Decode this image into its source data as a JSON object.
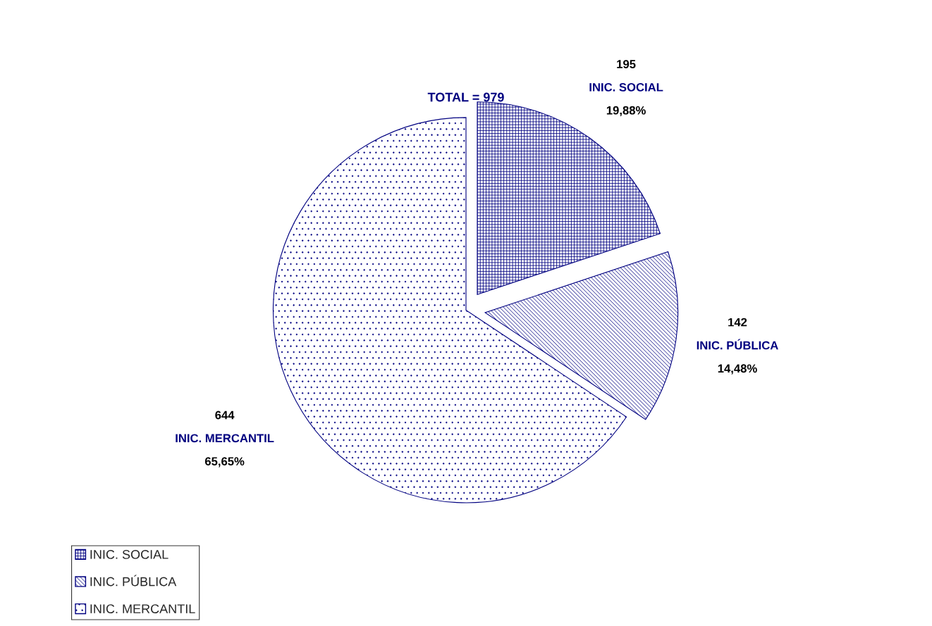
{
  "chart_data": {
    "type": "pie",
    "title": "TOTAL = 979",
    "categories": [
      "INIC. SOCIAL",
      "INIC. PÚBLICA",
      "INIC. MERCANTIL"
    ],
    "values": [
      195,
      142,
      644
    ],
    "colors": [
      "#000080",
      "#000080",
      "#000080"
    ],
    "data_labels": true,
    "annotations": [
      {
        "text": "19,88%",
        "x": "INIC. SOCIAL"
      },
      {
        "text": "14,48%",
        "x": "INIC. PÚBLICA"
      },
      {
        "text": "65,65%",
        "x": "INIC. MERCANTIL"
      }
    ],
    "legend": "bottom left"
  }
}
